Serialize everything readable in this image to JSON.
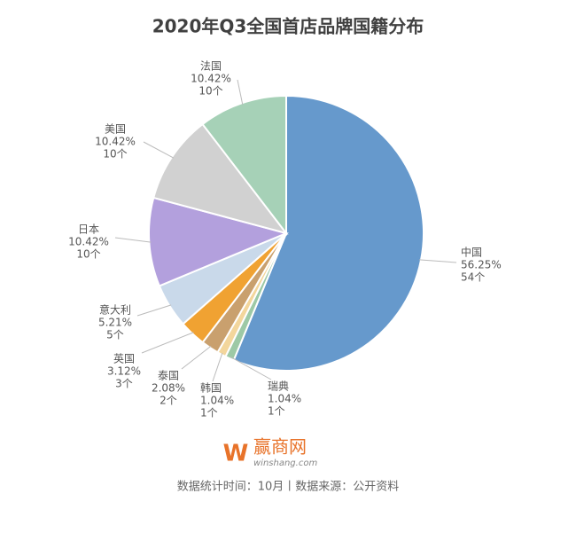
{
  "chart_data": {
    "type": "pie",
    "title": "2020年Q3全国首店品牌国籍分布",
    "categories": [
      "中国",
      "瑞典",
      "韩国",
      "泰国",
      "英国",
      "意大利",
      "日本",
      "美国",
      "法国"
    ],
    "values": [
      56.25,
      1.04,
      1.04,
      2.08,
      3.12,
      5.21,
      10.42,
      10.42,
      10.42
    ],
    "value_labels": [
      "56.25%",
      "1.04%",
      "1.04%",
      "2.08%",
      "3.12%",
      "5.21%",
      "10.42%",
      "10.42%",
      "10.42%"
    ],
    "counts": [
      54,
      1,
      1,
      2,
      3,
      5,
      10,
      10,
      10
    ],
    "count_labels": [
      "54个",
      "1个",
      "1个",
      "2个",
      "3个",
      "5个",
      "10个",
      "10个",
      "10个"
    ],
    "colors": [
      "#6699cc",
      "#9dc9a6",
      "#f3d69c",
      "#c9a06e",
      "#f0a232",
      "#c9d9ea",
      "#b3a0dd",
      "#d1d1d1",
      "#a6d1b7"
    ],
    "logo": "赢商网",
    "logo_url": "winshang.com",
    "footer": "数据统计时间：10月丨数据来源：公开资料"
  }
}
